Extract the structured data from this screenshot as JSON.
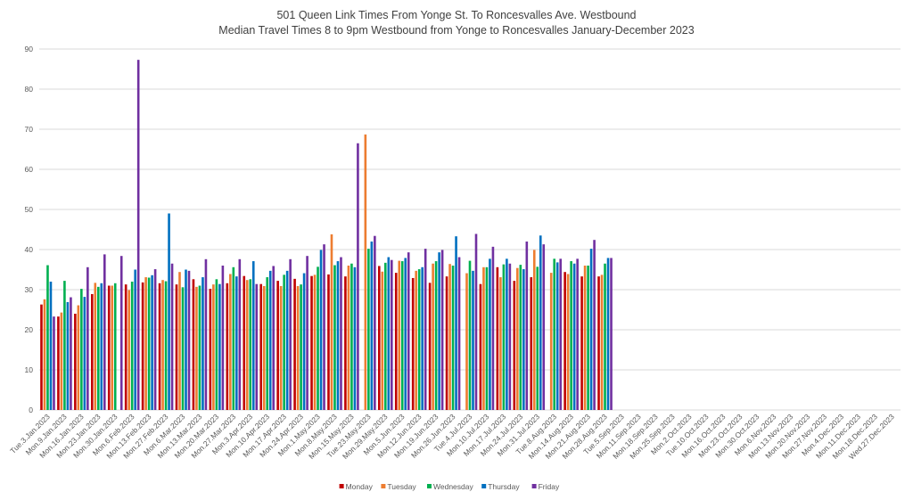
{
  "chart_data": {
    "type": "bar",
    "title": "501 Queen Link Times From Yonge St. To Roncesvalles Ave. Westbound",
    "subtitle": "Median Travel Times 8 to 9pm Westbound from Yonge to Roncesvalles January-December 2023",
    "xlabel": "",
    "ylabel": "",
    "ylim": [
      0,
      90
    ],
    "yticks": [
      0,
      10,
      20,
      30,
      40,
      50,
      60,
      70,
      80,
      90
    ],
    "grid": true,
    "legend_position": "bottom",
    "categories": [
      "Tue.3.Jan.2023",
      "Mon.9.Jan.2023",
      "Mon.16.Jan.2023",
      "Mon.23.Jan.2023",
      "Mon.30.Jan.2023",
      "Mon.6.Feb.2023",
      "Mon.13.Feb.2023",
      "Mon.27.Feb.2023",
      "Mon.6.Mar.2023",
      "Mon.13.Mar.2023",
      "Mon.20.Mar.2023",
      "Mon.27.Mar.2023",
      "Mon.3.Apr.2023",
      "Mon.10.Apr.2023",
      "Mon.17.Apr.2023",
      "Mon.24.Apr.2023",
      "Mon.1.May.2023",
      "Mon.8.May.2023",
      "Mon.15.May.2023",
      "Tue.23.May.2023",
      "Mon.29.May.2023",
      "Mon.5.Jun.2023",
      "Mon.12.Jun.2023",
      "Mon.19.Jun.2023",
      "Mon.26.Jun.2023",
      "Tue.4.Jul.2023",
      "Mon.10.Jul.2023",
      "Mon.17.Jul.2023",
      "Mon.24.Jul.2023",
      "Mon.31.Jul.2023",
      "Tue.8.Aug.2023",
      "Mon.14.Aug.2023",
      "Mon.21.Aug.2023",
      "Mon.28.Aug.2023",
      "Tue.5.Sep.2023",
      "Mon.11.Sep.2023",
      "Mon.18.Sep.2023",
      "Mon.25.Sep.2023",
      "Mon.2.Oct.2023",
      "Tue.10.Oct.2023",
      "Mon.16.Oct.2023",
      "Mon.23.Oct.2023",
      "Mon.30.Oct.2023",
      "Mon.6.Nov.2023",
      "Mon.13.Nov.2023",
      "Mon.20.Nov.2023",
      "Mon.27.Nov.2023",
      "Mon.4.Dec.2023",
      "Mon.11.Dec.2023",
      "Mon.18.Dec.2023",
      "Wed.27.Dec.2023"
    ],
    "series": [
      {
        "name": "Monday",
        "color": "#c00000",
        "values": [
          26.3,
          23.3,
          24.0,
          28.9,
          31.0,
          31.3,
          31.8,
          31.6,
          31.3,
          32.6,
          30.2,
          31.6,
          33.4,
          31.4,
          32.2,
          32.7,
          33.4,
          33.8,
          33.3,
          null,
          35.9,
          34.2,
          32.9,
          31.7,
          33.3,
          null,
          31.4,
          35.6,
          32.2,
          33.1,
          null,
          34.4,
          33.3,
          33.3,
          null,
          null,
          null,
          null,
          null,
          null,
          null,
          null,
          null,
          null,
          null,
          null,
          null,
          null,
          null,
          null,
          null
        ]
      },
      {
        "name": "Tuesday",
        "color": "#ed7d31",
        "values": [
          27.6,
          24.3,
          26.1,
          31.7,
          31.0,
          29.9,
          33.1,
          32.4,
          34.4,
          30.7,
          31.3,
          33.9,
          32.4,
          30.9,
          30.9,
          30.9,
          33.7,
          43.8,
          36.0,
          68.7,
          34.5,
          37.2,
          34.7,
          36.5,
          36.4,
          34.1,
          35.6,
          33.1,
          35.4,
          39.9,
          34.2,
          33.9,
          36.0,
          33.7,
          null,
          null,
          null,
          null,
          null,
          null,
          null,
          null,
          null,
          null,
          null,
          null,
          null,
          null,
          null,
          null,
          null
        ]
      },
      {
        "name": "Wednesday",
        "color": "#00b050",
        "values": [
          36.1,
          32.2,
          30.2,
          30.7,
          31.6,
          32.0,
          33.0,
          32.1,
          30.6,
          31.0,
          32.6,
          35.6,
          32.6,
          33.1,
          33.7,
          31.3,
          35.7,
          36.1,
          36.5,
          40.2,
          36.7,
          37.1,
          35.1,
          37.1,
          36.0,
          37.2,
          35.6,
          36.3,
          36.2,
          35.7,
          37.7,
          37.1,
          36.0,
          36.5,
          null,
          null,
          null,
          null,
          null,
          null,
          null,
          null,
          null,
          null,
          null,
          null,
          null,
          null,
          null,
          null,
          null
        ]
      },
      {
        "name": "Thursday",
        "color": "#0070c0",
        "values": [
          32.0,
          26.9,
          28.2,
          31.6,
          null,
          35.0,
          33.6,
          49.0,
          35.0,
          33.1,
          31.4,
          33.3,
          37.1,
          34.7,
          34.7,
          34.1,
          39.9,
          37.1,
          35.6,
          42.0,
          38.1,
          37.9,
          35.6,
          39.3,
          43.3,
          34.7,
          37.7,
          37.7,
          35.1,
          43.5,
          36.8,
          36.5,
          40.2,
          37.9,
          null,
          null,
          null,
          null,
          null,
          null,
          null,
          null,
          null,
          null,
          null,
          null,
          null,
          null,
          null,
          null,
          null
        ]
      },
      {
        "name": "Friday",
        "color": "#7030a0",
        "values": [
          23.3,
          28.1,
          35.6,
          38.8,
          38.4,
          87.3,
          35.1,
          36.5,
          34.7,
          37.6,
          36.0,
          37.6,
          31.4,
          35.9,
          37.6,
          38.4,
          41.3,
          38.1,
          66.5,
          43.4,
          37.4,
          39.3,
          40.2,
          39.9,
          38.1,
          43.9,
          40.7,
          36.5,
          42.0,
          41.3,
          37.7,
          37.7,
          42.4,
          37.9,
          null,
          null,
          null,
          null,
          null,
          null,
          null,
          null,
          null,
          null,
          null,
          null,
          null,
          null,
          null,
          null,
          null
        ]
      }
    ]
  }
}
